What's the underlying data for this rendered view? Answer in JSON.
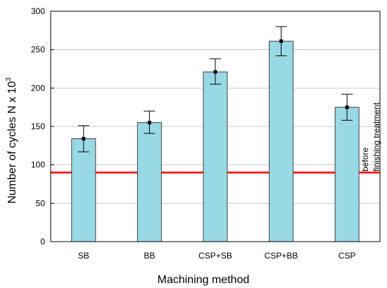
{
  "chart_data": {
    "type": "bar",
    "categories": [
      "SB",
      "BB",
      "CSP+SB",
      "CSP+BB",
      "CSP"
    ],
    "values": [
      134,
      155,
      221,
      261,
      175
    ],
    "error_low": [
      117,
      141,
      205,
      242,
      158
    ],
    "error_high": [
      151,
      170,
      238,
      280,
      192
    ],
    "xlabel": "Machining method",
    "ylabel_main": "Number of cycles N x 10",
    "ylabel_sup": "3",
    "ylim": [
      0,
      300
    ],
    "yticks": [
      0,
      50,
      100,
      150,
      200,
      250,
      300
    ],
    "grid": true,
    "reference_line": {
      "value": 90,
      "label_line1": "before",
      "label_line2": "finishing treatment",
      "color": "#ff0000"
    },
    "bar_color": "#99d9e6",
    "bar_edge_color": "#404040",
    "grid_color": "#c8c8c8"
  }
}
